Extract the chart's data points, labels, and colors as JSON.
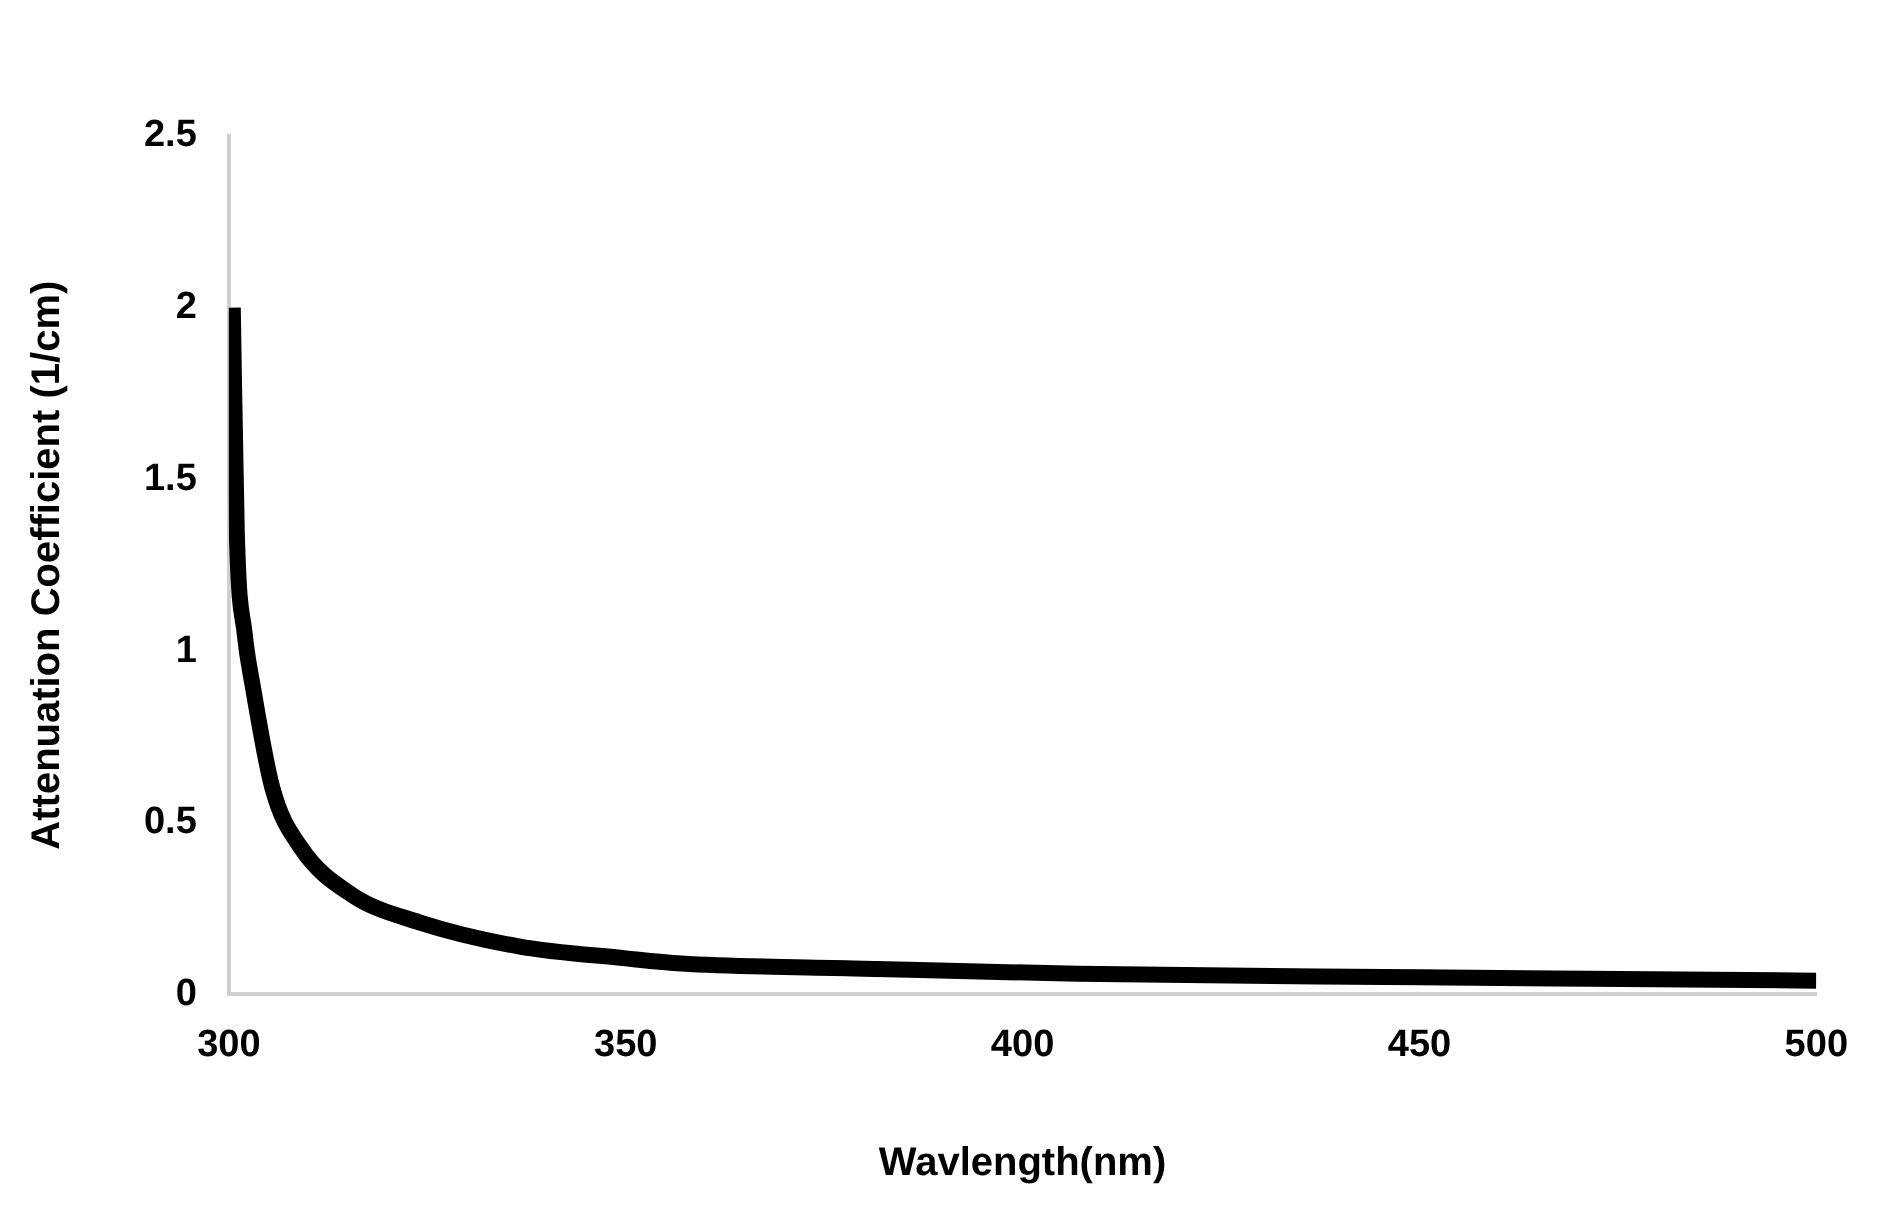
{
  "chart_data": {
    "type": "line",
    "xlabel": "Wavlength(nm)",
    "ylabel": "Attenuation Coefficient (1/cm)",
    "x": [
      300.5,
      301,
      302,
      303,
      305.5,
      309,
      315.5,
      324,
      336.5,
      350,
      357,
      380,
      407,
      450,
      500
    ],
    "series": [
      {
        "color": "#000000",
        "values": [
          2.0,
          1.35,
          1.05,
          0.9,
          0.6,
          0.43,
          0.29,
          0.21,
          0.14,
          0.105,
          0.09,
          0.075,
          0.06,
          0.05,
          0.04
        ]
      }
    ],
    "xlim": [
      300,
      500
    ],
    "xticks": [
      300,
      350,
      400,
      450,
      500
    ],
    "ylim": [
      0,
      2.5
    ],
    "yticks": [
      0,
      0.5,
      1,
      1.5,
      2,
      2.5
    ],
    "grid": false,
    "legend": false,
    "marker": "none",
    "line_style": "solid"
  }
}
